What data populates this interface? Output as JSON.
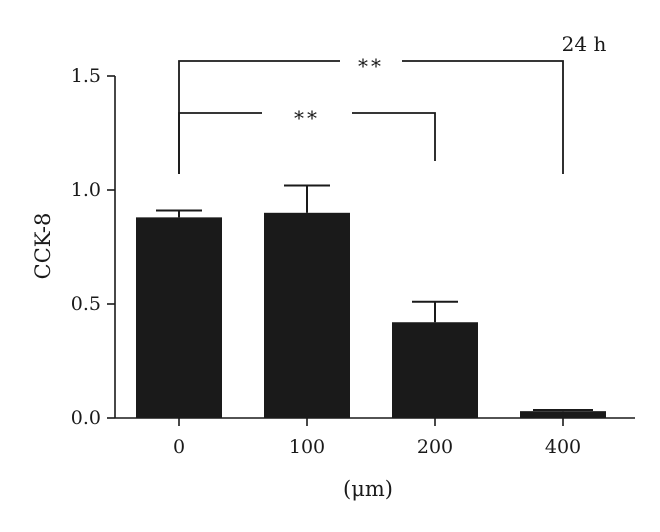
{
  "chart_data": {
    "type": "bar",
    "categories": [
      "0",
      "100",
      "200",
      "400"
    ],
    "values": [
      0.88,
      0.9,
      0.42,
      0.03
    ],
    "errors": [
      0.03,
      0.12,
      0.09,
      0.005
    ],
    "xlabel": "(μm)",
    "ylabel": "CCK-8",
    "ylim": [
      0,
      1.5
    ],
    "yticks": [
      0.0,
      0.5,
      1.0,
      1.5
    ],
    "ytick_labels": [
      "0.0",
      "0.5",
      "1.0",
      "1.5"
    ],
    "annotation": "24 h",
    "bar_color": "#1a1a1a",
    "significance": [
      {
        "from": "0",
        "to": "200",
        "label": "**"
      },
      {
        "from": "0",
        "to": "400",
        "label": "**"
      }
    ]
  }
}
